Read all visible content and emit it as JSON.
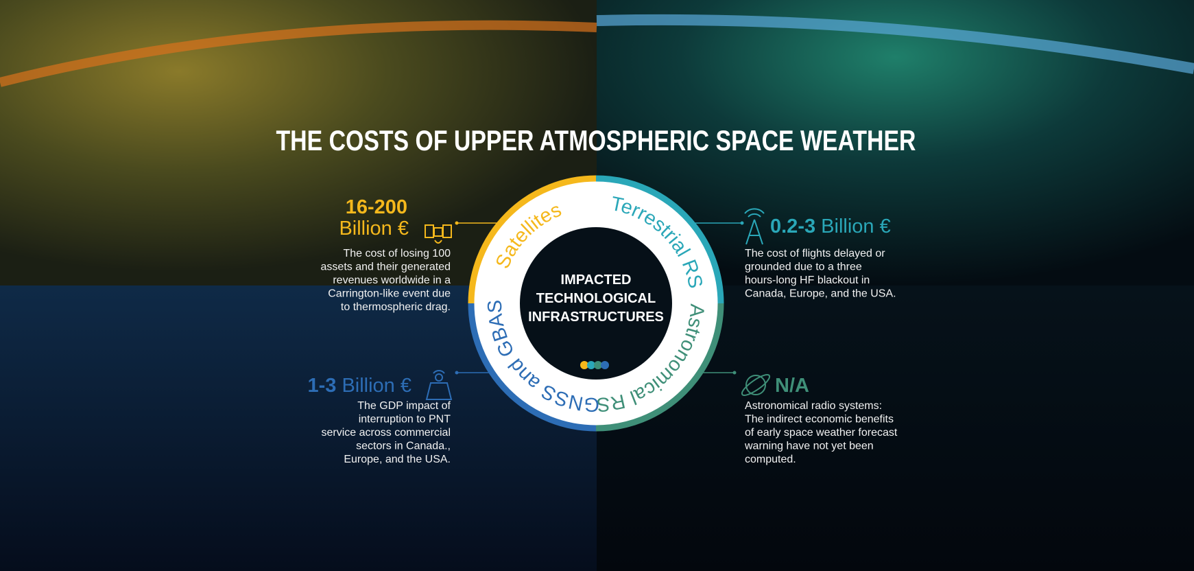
{
  "title": "THE COSTS OF UPPER ATMOSPHERIC SPACE WEATHER",
  "center": {
    "lines": [
      "IMPACTED",
      "TECHNOLOGICAL",
      "INFRASTRUCTURES"
    ]
  },
  "sectors": [
    {
      "label": "Satellites",
      "amount": "16-200",
      "unit": "Billion €",
      "description": [
        "The cost of losing 100",
        "assets and their generated",
        "revenues worldwide in a",
        "Carrington-like event due",
        "to thermospheric drag."
      ]
    },
    {
      "label": "Terrestrial RS",
      "amount": "0.2-3",
      "unit": "Billion €",
      "description": [
        "The cost of flights delayed or",
        "grounded due to a three",
        "hours-long HF blackout in",
        "Canada, Europe, and the USA."
      ]
    },
    {
      "label": "Astronomical RS",
      "amount": "N/A",
      "description": [
        "Astronomical radio systems:",
        "The indirect economic benefits",
        "of early space weather forecast",
        "warning have not yet been",
        "computed."
      ]
    },
    {
      "label": "GNSS and GBAS",
      "amount": "1-3",
      "unit": "Billion €",
      "description": [
        "The GDP impact of",
        "interruption to PNT",
        "service across commercial",
        "sectors in Canada.,",
        "Europe, and the USA."
      ]
    }
  ]
}
